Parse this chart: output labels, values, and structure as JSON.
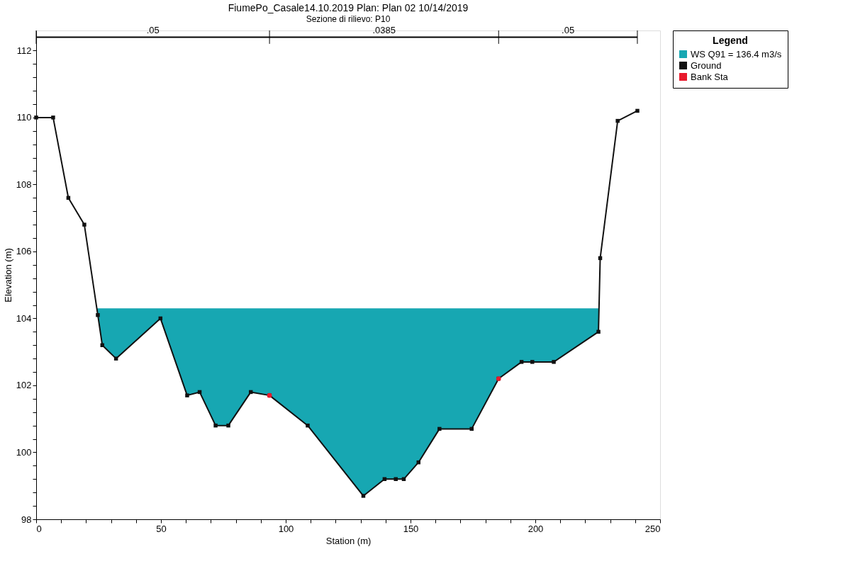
{
  "chart_data": {
    "type": "line",
    "title": "FiumePo_Casale14.10.2019      Plan: Plan 02    10/14/2019",
    "subtitle": "Sezione di rilievo: P10",
    "xlabel": "Station (m)",
    "ylabel": "Elevation (m)",
    "legend_title": "Legend",
    "xlim": [
      0,
      250
    ],
    "ylim": [
      98,
      112.6
    ],
    "xticks": [
      0,
      {
        "value": 10,
        "label": null
      },
      {
        "value": 20,
        "label": null
      },
      {
        "value": 30,
        "label": null
      },
      {
        "value": 40,
        "label": null
      },
      50,
      {
        "value": 60,
        "label": null
      },
      {
        "value": 70,
        "label": null
      },
      {
        "value": 80,
        "label": null
      },
      {
        "value": 90,
        "label": null
      },
      100,
      {
        "value": 110,
        "label": null
      },
      {
        "value": 120,
        "label": null
      },
      {
        "value": 130,
        "label": null
      },
      {
        "value": 140,
        "label": null
      },
      150,
      {
        "value": 160,
        "label": null
      },
      {
        "value": 170,
        "label": null
      },
      {
        "value": 180,
        "label": null
      },
      {
        "value": 190,
        "label": null
      },
      200,
      {
        "value": 210,
        "label": null
      },
      {
        "value": 220,
        "label": null
      },
      {
        "value": 230,
        "label": null
      },
      {
        "value": 240,
        "label": null
      },
      250
    ],
    "yticks": [
      98,
      {
        "value": 98.4,
        "label": null
      },
      {
        "value": 98.8,
        "label": null
      },
      {
        "value": 99.2,
        "label": null
      },
      {
        "value": 99.6,
        "label": null
      },
      100,
      {
        "value": 100.4,
        "label": null
      },
      {
        "value": 100.8,
        "label": null
      },
      {
        "value": 101.2,
        "label": null
      },
      {
        "value": 101.6,
        "label": null
      },
      102,
      {
        "value": 102.4,
        "label": null
      },
      {
        "value": 102.8,
        "label": null
      },
      {
        "value": 103.2,
        "label": null
      },
      {
        "value": 103.6,
        "label": null
      },
      104,
      {
        "value": 104.4,
        "label": null
      },
      {
        "value": 104.8,
        "label": null
      },
      {
        "value": 105.2,
        "label": null
      },
      {
        "value": 105.6,
        "label": null
      },
      106,
      {
        "value": 106.4,
        "label": null
      },
      {
        "value": 106.8,
        "label": null
      },
      {
        "value": 107.2,
        "label": null
      },
      {
        "value": 107.6,
        "label": null
      },
      108,
      {
        "value": 108.4,
        "label": null
      },
      {
        "value": 108.8,
        "label": null
      },
      {
        "value": 109.2,
        "label": null
      },
      {
        "value": 109.6,
        "label": null
      },
      110,
      {
        "value": 110.4,
        "label": null
      },
      {
        "value": 110.8,
        "label": null
      },
      {
        "value": 111.2,
        "label": null
      },
      {
        "value": 111.6,
        "label": null
      },
      112
    ],
    "grid": false,
    "legend": "top right",
    "series": [
      {
        "type": "area",
        "name": "WS Q91 = 136.4 m3/s",
        "color": "#17a7b2",
        "x": [
          24.3,
          24.7,
          26.5,
          32.0,
          49.8,
          60.5,
          65.5,
          71.9,
          77.0,
          86.0,
          93.5,
          108.8,
          131.1,
          139.6,
          144.1,
          147.3,
          153.2,
          161.6,
          174.5,
          185.3,
          194.5,
          198.8,
          207.4,
          225.3,
          225.5
        ],
        "values": [
          104.3,
          104.3,
          104.3,
          104.3,
          104.3,
          104.3,
          104.3,
          104.3,
          104.3,
          104.3,
          104.3,
          104.3,
          104.3,
          104.3,
          104.3,
          104.3,
          104.3,
          104.3,
          104.3,
          104.3,
          104.3,
          104.3,
          104.3,
          104.3,
          104.3
        ]
      },
      {
        "type": "line",
        "name": "Ground",
        "color": "#111111",
        "marker": "square",
        "line_style": "solid",
        "x": [
          0,
          6.8,
          12.9,
          19.3,
          24.7,
          26.5,
          32.0,
          49.8,
          60.5,
          65.5,
          71.9,
          77.0,
          86.0,
          93.5,
          108.8,
          131.1,
          139.6,
          144.1,
          147.3,
          153.2,
          161.6,
          174.5,
          185.3,
          194.5,
          198.8,
          207.4,
          225.3,
          226.0,
          233.0,
          240.9
        ],
        "values": [
          110.0,
          110.0,
          107.6,
          106.8,
          104.1,
          103.2,
          102.8,
          104.0,
          101.7,
          101.8,
          100.8,
          100.8,
          101.8,
          101.7,
          100.8,
          98.7,
          99.2,
          99.2,
          99.2,
          99.7,
          100.7,
          100.7,
          102.2,
          102.7,
          102.7,
          102.7,
          103.6,
          105.8,
          109.9,
          110.2
        ]
      },
      {
        "type": "scatter",
        "name": "Bank Sta",
        "color": "#e8192c",
        "marker": "circle",
        "x": [
          93.5,
          185.3
        ],
        "values": [
          101.7,
          102.2
        ]
      },
      {
        "color": "#000000",
        "marker": "none",
        "line_style": "solid",
        "x": [
          0,
          93.5,
          185.3,
          240.9
        ],
        "values": [
          112.4,
          112.4,
          112.4,
          112.4
        ],
        "errors": [
          0.2,
          0.2,
          0.2,
          0.2
        ]
      }
    ],
    "annotations": [
      {
        "text": ".05",
        "x": 46.8,
        "y": 112.4
      },
      {
        "text": ".0385",
        "x": 139.4,
        "y": 112.4
      },
      {
        "text": ".05",
        "x": 213.1,
        "y": 112.4
      }
    ]
  }
}
